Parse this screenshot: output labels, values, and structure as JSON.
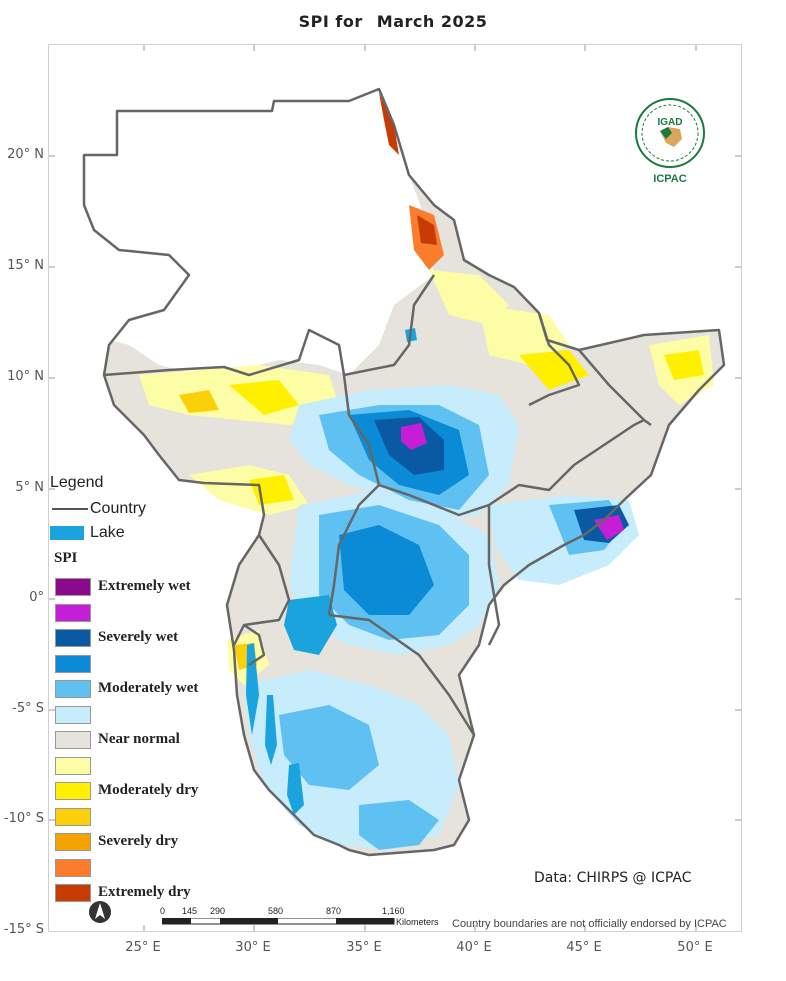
{
  "title": {
    "prefix": "SPI  for",
    "period": "March 2025"
  },
  "axes": {
    "latitude_labels": [
      "20° N",
      "15° N",
      "10° N",
      "5° N",
      "0°",
      "-5° S",
      "-10° S",
      "-15° S"
    ],
    "longitude_labels": [
      "25° E",
      "30° E",
      "35° E",
      "40° E",
      "45° E",
      "50° E"
    ]
  },
  "legend": {
    "title": "Legend",
    "country": "Country",
    "lake": "Lake",
    "spi_title": "SPI",
    "classes": [
      {
        "label": "Extremely wet",
        "color": "#8b0a8b"
      },
      {
        "label": "",
        "color": "#c61dd6"
      },
      {
        "label": "Severely wet",
        "color": "#0a5aa3"
      },
      {
        "label": "",
        "color": "#0b8bd6"
      },
      {
        "label": "Moderately wet",
        "color": "#5fc0f2"
      },
      {
        "label": "",
        "color": "#c7ecfb"
      },
      {
        "label": "Near normal",
        "color": "#e6e3dc"
      },
      {
        "label": "",
        "color": "#fdfda6"
      },
      {
        "label": "Moderately dry",
        "color": "#fff000"
      },
      {
        "label": "",
        "color": "#fbcf09"
      },
      {
        "label": "Severely dry",
        "color": "#f5a300"
      },
      {
        "label": "",
        "color": "#fb7c2a"
      },
      {
        "label": "Extremely dry",
        "color": "#c73c05"
      }
    ]
  },
  "credit": "Data: CHIRPS @ ICPAC",
  "disclaimer": "Country boundaries are not officially endorsed by ICPAC",
  "scale_bar": {
    "ticks": [
      "0",
      "145",
      "290",
      "580",
      "870",
      "1,160"
    ],
    "unit": "Kilometers"
  },
  "logo": {
    "top": "IGAD",
    "bottom": "ICPAC"
  },
  "icons": {
    "north_arrow": "north-arrow-icon",
    "logo": "icpac-logo-icon"
  }
}
